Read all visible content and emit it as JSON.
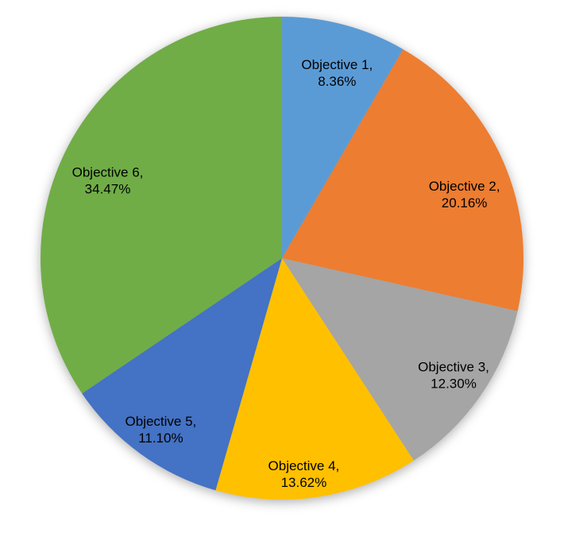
{
  "chart_data": {
    "type": "pie",
    "title": "",
    "legend_position": "none",
    "start_angle_deg": 0,
    "direction": "clockwise",
    "grid": "off",
    "background_color": "#FFFFFF",
    "data_label_color": "#000000",
    "unit": "%",
    "categories": [
      "Objective 1",
      "Objective 2",
      "Objective 3",
      "Objective 4",
      "Objective 5",
      "Objective 6"
    ],
    "values": [
      8.36,
      20.16,
      12.3,
      13.62,
      11.1,
      34.47
    ],
    "slices": [
      {
        "name": "Objective 1",
        "value": 8.36,
        "color": "#5B9BD5",
        "label_lines": [
          "Objective 1,",
          "8.36%"
        ]
      },
      {
        "name": "Objective 2",
        "value": 20.16,
        "color": "#ED7D31",
        "label_lines": [
          "Objective 2,",
          "20.16%"
        ]
      },
      {
        "name": "Objective 3",
        "value": 12.3,
        "color": "#A5A5A5",
        "label_lines": [
          "Objective 3,",
          "12.30%"
        ]
      },
      {
        "name": "Objective 4",
        "value": 13.62,
        "color": "#FFC000",
        "label_lines": [
          "Objective 4,",
          "13.62%"
        ]
      },
      {
        "name": "Objective 5",
        "value": 11.1,
        "color": "#4472C4",
        "label_lines": [
          "Objective 5,",
          "11.10%"
        ]
      },
      {
        "name": "Objective 6",
        "value": 34.47,
        "color": "#70AD47",
        "label_lines": [
          "Objective 6,",
          "34.47%"
        ]
      }
    ]
  }
}
